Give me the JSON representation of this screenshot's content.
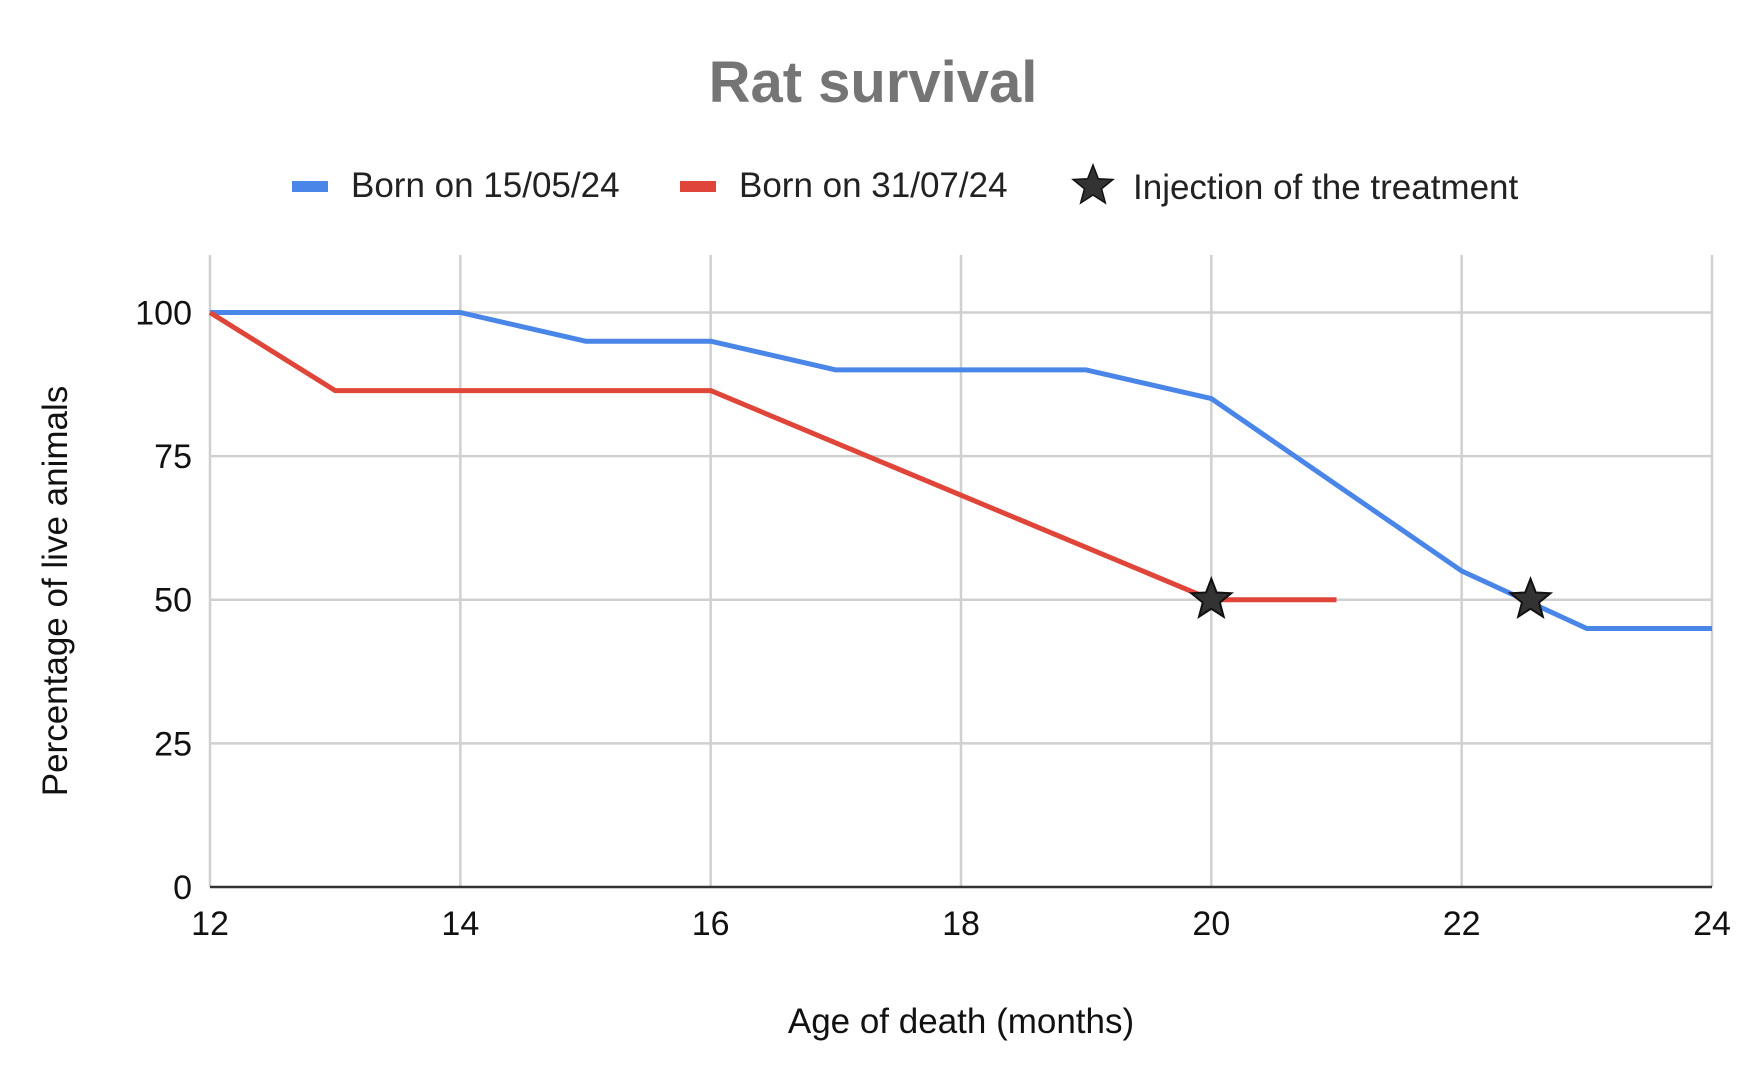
{
  "chart_data": {
    "type": "line",
    "title": "Rat survival",
    "xlabel": "Age of death (months)",
    "ylabel": "Percentage of live animals",
    "xlim": [
      12,
      24
    ],
    "ylim": [
      0,
      110
    ],
    "xticks": [
      12,
      14,
      16,
      18,
      20,
      22,
      24
    ],
    "yticks": [
      0,
      25,
      50,
      75,
      100
    ],
    "grid": true,
    "legend_position": "top",
    "series": [
      {
        "name": "Born on 15/05/24",
        "color": "#4a86e8",
        "points": [
          [
            12,
            100
          ],
          [
            13,
            100
          ],
          [
            14,
            100
          ],
          [
            15,
            95
          ],
          [
            16,
            95
          ],
          [
            17,
            90
          ],
          [
            18,
            90
          ],
          [
            19,
            90
          ],
          [
            20,
            85
          ],
          [
            21,
            70
          ],
          [
            22,
            55
          ],
          [
            23,
            45
          ],
          [
            24,
            45
          ]
        ]
      },
      {
        "name": "Born on 31/07/24",
        "color": "#e0453a",
        "points": [
          [
            12,
            100
          ],
          [
            13,
            86.4
          ],
          [
            14,
            86.4
          ],
          [
            15,
            86.4
          ],
          [
            16,
            86.4
          ],
          [
            17,
            77.3
          ],
          [
            18,
            68.2
          ],
          [
            19,
            59.1
          ],
          [
            20,
            50
          ],
          [
            21,
            50
          ]
        ]
      }
    ],
    "markers": {
      "name": "Injection of the treatment",
      "symbol": "star",
      "color": "#333333",
      "points": [
        [
          20,
          50
        ],
        [
          22.55,
          50
        ]
      ]
    }
  }
}
